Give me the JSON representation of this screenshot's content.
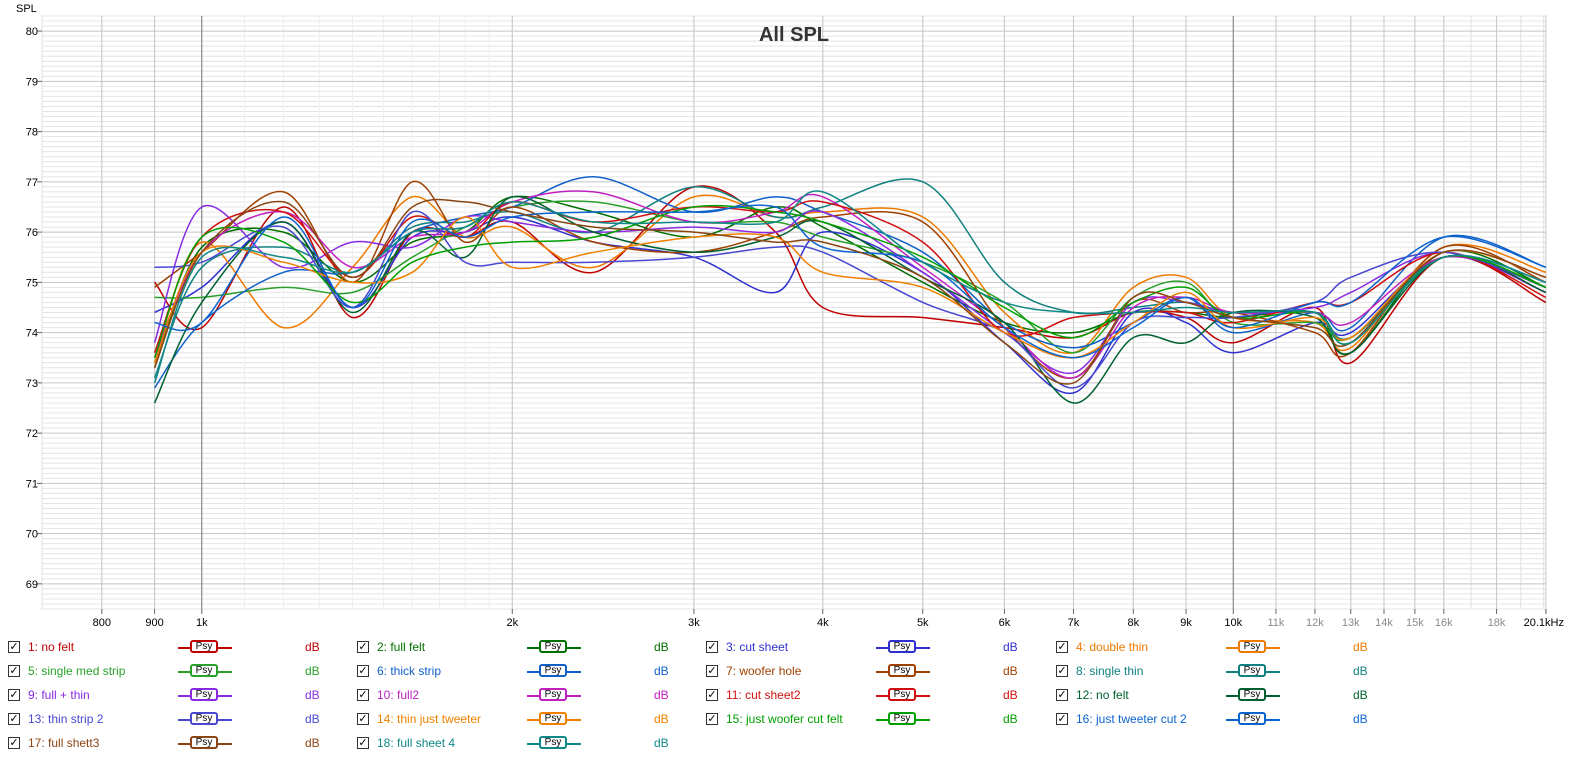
{
  "chart_data": {
    "type": "line",
    "title": "All SPL",
    "ylabel": "SPL",
    "xunit": "kHz",
    "xscale": "log",
    "xlim": [
      700,
      20100
    ],
    "ylim": [
      68.5,
      80.3
    ],
    "grid": true,
    "yticks": [
      69,
      70,
      71,
      72,
      73,
      74,
      75,
      76,
      77,
      78,
      79,
      80
    ],
    "xticks": [
      {
        "v": 800,
        "label": "800",
        "minor": false
      },
      {
        "v": 900,
        "label": "900",
        "minor": false
      },
      {
        "v": 1000,
        "label": "1k",
        "minor": false
      },
      {
        "v": 2000,
        "label": "2k",
        "minor": false
      },
      {
        "v": 3000,
        "label": "3k",
        "minor": false
      },
      {
        "v": 4000,
        "label": "4k",
        "minor": false
      },
      {
        "v": 5000,
        "label": "5k",
        "minor": false
      },
      {
        "v": 6000,
        "label": "6k",
        "minor": false
      },
      {
        "v": 7000,
        "label": "7k",
        "minor": false
      },
      {
        "v": 8000,
        "label": "8k",
        "minor": false
      },
      {
        "v": 9000,
        "label": "9k",
        "minor": false
      },
      {
        "v": 10000,
        "label": "10k",
        "minor": false
      },
      {
        "v": 11000,
        "label": "11k",
        "minor": true
      },
      {
        "v": 12000,
        "label": "12k",
        "minor": true
      },
      {
        "v": 13000,
        "label": "13k",
        "minor": true
      },
      {
        "v": 14000,
        "label": "14k",
        "minor": true
      },
      {
        "v": 15000,
        "label": "15k",
        "minor": true
      },
      {
        "v": 16000,
        "label": "16k",
        "minor": true
      },
      {
        "v": 18000,
        "label": "18k",
        "minor": true
      },
      {
        "v": 20100,
        "label": "20.1kHz",
        "minor": false
      }
    ],
    "series": [
      {
        "name": "1: no felt",
        "color": "#c00000",
        "x": [
          900,
          1000,
          1200,
          1400,
          1600,
          1800,
          2000,
          2400,
          3000,
          3600,
          4000,
          5000,
          6000,
          7000,
          8000,
          9000,
          10000,
          12000,
          13000,
          16000,
          20100
        ],
        "y": [
          75.0,
          74.1,
          76.5,
          74.3,
          76.0,
          75.9,
          76.2,
          75.2,
          76.9,
          76.0,
          74.5,
          74.3,
          74.1,
          73.9,
          74.4,
          74.3,
          73.8,
          74.5,
          73.4,
          75.5,
          74.6
        ]
      },
      {
        "name": "2: full felt",
        "color": "#007000",
        "x": [
          900,
          1000,
          1200,
          1400,
          1600,
          1800,
          2000,
          2400,
          3000,
          3600,
          4000,
          5000,
          6000,
          7000,
          8000,
          9000,
          10000,
          12000,
          13000,
          16000,
          20100
        ],
        "y": [
          73.3,
          75.7,
          76.0,
          75.0,
          75.8,
          76.0,
          76.7,
          76.4,
          75.9,
          76.5,
          76.1,
          75.0,
          74.2,
          74.0,
          74.4,
          74.4,
          74.3,
          74.4,
          73.6,
          75.6,
          74.9
        ]
      },
      {
        "name": "3: cut sheet",
        "color": "#3030d0",
        "x": [
          900,
          1000,
          1200,
          1400,
          1600,
          1800,
          2000,
          2400,
          3000,
          3600,
          4000,
          5000,
          6000,
          7000,
          8000,
          9000,
          10000,
          12000,
          13000,
          16000,
          20100
        ],
        "y": [
          74.4,
          74.9,
          76.2,
          74.5,
          75.9,
          76.0,
          76.3,
          75.8,
          75.5,
          74.8,
          76.0,
          75.2,
          73.8,
          72.8,
          74.4,
          74.2,
          73.6,
          74.2,
          74.0,
          75.5,
          74.8
        ]
      },
      {
        "name": "4: double thin",
        "color": "#ee7a00",
        "x": [
          900,
          1000,
          1200,
          1400,
          1600,
          1800,
          2000,
          2400,
          3000,
          3600,
          4000,
          5000,
          6000,
          7000,
          8000,
          9000,
          10000,
          12000,
          13000,
          16000,
          20100
        ],
        "y": [
          73.4,
          75.8,
          74.1,
          75.3,
          76.7,
          75.9,
          76.1,
          75.3,
          76.7,
          76.3,
          76.4,
          76.3,
          74.4,
          73.6,
          74.9,
          75.1,
          74.3,
          74.2,
          73.7,
          75.7,
          75.2
        ]
      },
      {
        "name": "5: single med strip",
        "color": "#2aa02a",
        "x": [
          900,
          1000,
          1200,
          1400,
          1600,
          1800,
          2000,
          2400,
          3000,
          3600,
          4000,
          5000,
          6000,
          7000,
          8000,
          9000,
          10000,
          12000,
          13000,
          16000,
          20100
        ],
        "y": [
          74.7,
          74.7,
          74.9,
          74.8,
          75.5,
          76.1,
          76.5,
          76.6,
          76.2,
          76.2,
          75.9,
          75.4,
          74.6,
          73.6,
          74.7,
          75.0,
          74.2,
          74.2,
          73.9,
          75.5,
          74.9
        ]
      },
      {
        "name": "6: thick strip",
        "color": "#1060c8",
        "x": [
          900,
          1000,
          1200,
          1400,
          1600,
          1800,
          2000,
          2400,
          3000,
          3600,
          4000,
          5000,
          6000,
          7000,
          8000,
          9000,
          10000,
          12000,
          13000,
          16000,
          20100
        ],
        "y": [
          72.9,
          74.2,
          75.2,
          75.2,
          76.0,
          76.3,
          76.5,
          77.1,
          76.4,
          76.7,
          76.4,
          75.6,
          74.2,
          73.7,
          74.2,
          74.7,
          74.0,
          74.4,
          74.1,
          75.9,
          75.3
        ]
      },
      {
        "name": "7: woofer hole",
        "color": "#a04000",
        "x": [
          900,
          1000,
          1200,
          1400,
          1600,
          1800,
          2000,
          2400,
          3000,
          3600,
          4000,
          5000,
          6000,
          7000,
          8000,
          9000,
          10000,
          12000,
          13000,
          16000,
          20100
        ],
        "y": [
          74.9,
          75.6,
          76.8,
          75.0,
          77.0,
          75.8,
          76.5,
          75.8,
          75.6,
          76.0,
          76.3,
          76.2,
          74.1,
          73.1,
          74.6,
          74.4,
          74.4,
          74.0,
          73.6,
          75.7,
          75.0
        ]
      },
      {
        "name": "8: single thin",
        "color": "#108080",
        "x": [
          900,
          1000,
          1200,
          1400,
          1600,
          1800,
          2000,
          2400,
          3000,
          3600,
          4000,
          5000,
          6000,
          7000,
          8000,
          9000,
          10000,
          12000,
          13000,
          16000,
          20100
        ],
        "y": [
          73.1,
          75.3,
          75.7,
          75.2,
          76.1,
          76.2,
          76.4,
          76.0,
          76.9,
          76.3,
          76.5,
          77.0,
          75.0,
          74.4,
          74.5,
          74.6,
          74.4,
          74.4,
          73.9,
          75.5,
          75.0
        ]
      },
      {
        "name": "9: full + thin",
        "color": "#8a2be2",
        "x": [
          900,
          1000,
          1200,
          1400,
          1600,
          1800,
          2000,
          2400,
          3000,
          3600,
          4000,
          5000,
          6000,
          7000,
          8000,
          9000,
          10000,
          12000,
          13000,
          16000,
          20100
        ],
        "y": [
          73.8,
          76.5,
          75.3,
          75.8,
          75.7,
          76.3,
          76.2,
          76.0,
          76.1,
          76.0,
          76.4,
          75.2,
          74.0,
          73.2,
          74.6,
          74.6,
          74.4,
          74.5,
          74.8,
          75.6,
          74.8
        ]
      },
      {
        "name": "10: full2",
        "color": "#c020c0",
        "x": [
          900,
          1000,
          1200,
          1400,
          1600,
          1800,
          2000,
          2400,
          3000,
          3600,
          4000,
          5000,
          6000,
          7000,
          8000,
          9000,
          10000,
          12000,
          13000,
          16000,
          20100
        ],
        "y": [
          73.5,
          75.6,
          76.4,
          75.3,
          75.9,
          76.0,
          76.6,
          76.8,
          76.2,
          76.4,
          76.7,
          75.3,
          74.1,
          73.1,
          74.5,
          74.7,
          74.4,
          74.4,
          74.2,
          75.5,
          74.9
        ]
      },
      {
        "name": "11: cut sheet2",
        "color": "#d01010",
        "x": [
          900,
          1000,
          1200,
          1400,
          1600,
          1800,
          2000,
          2400,
          3000,
          3600,
          4000,
          5000,
          6000,
          7000,
          8000,
          9000,
          10000,
          12000,
          13000,
          16000,
          20100
        ],
        "y": [
          73.6,
          75.9,
          76.4,
          75.1,
          76.3,
          75.9,
          76.6,
          76.2,
          76.5,
          76.4,
          76.6,
          75.8,
          74.0,
          74.3,
          74.4,
          74.4,
          74.2,
          74.6,
          74.6,
          75.6,
          74.7
        ]
      },
      {
        "name": "12: no felt",
        "color": "#006030",
        "x": [
          900,
          1000,
          1200,
          1400,
          1600,
          1800,
          2000,
          2400,
          3000,
          3600,
          4000,
          5000,
          6000,
          7000,
          8000,
          9000,
          10000,
          12000,
          13000,
          16000,
          20100
        ],
        "y": [
          72.6,
          74.6,
          76.2,
          74.4,
          76.0,
          75.5,
          76.7,
          76.0,
          75.6,
          75.9,
          76.2,
          75.1,
          74.2,
          72.6,
          73.9,
          73.8,
          74.4,
          74.3,
          73.6,
          75.5,
          74.8
        ]
      },
      {
        "name": "13: thin strip 2",
        "color": "#4848d0",
        "x": [
          900,
          1000,
          1200,
          1400,
          1600,
          1800,
          2000,
          2400,
          3000,
          3600,
          4000,
          5000,
          6000,
          7000,
          8000,
          9000,
          10000,
          12000,
          13000,
          16000,
          20100
        ],
        "y": [
          75.3,
          75.4,
          76.1,
          74.5,
          76.4,
          75.4,
          75.4,
          75.4,
          75.5,
          75.7,
          75.6,
          74.6,
          74.0,
          72.9,
          74.2,
          74.3,
          74.3,
          74.6,
          75.1,
          75.6,
          74.9
        ]
      },
      {
        "name": "14: thin just tweeter",
        "color": "#f08000",
        "x": [
          900,
          1000,
          1200,
          1400,
          1600,
          1800,
          2000,
          2400,
          3000,
          3600,
          4000,
          5000,
          6000,
          7000,
          8000,
          9000,
          10000,
          12000,
          13000,
          16000,
          20100
        ],
        "y": [
          73.4,
          75.6,
          75.4,
          75.0,
          75.2,
          76.3,
          75.3,
          75.6,
          75.9,
          75.9,
          75.2,
          74.9,
          74.0,
          73.5,
          74.2,
          74.8,
          74.1,
          74.3,
          73.9,
          75.6,
          75.1
        ]
      },
      {
        "name": "15: just woofer cut felt",
        "color": "#00a000",
        "x": [
          900,
          1000,
          1200,
          1400,
          1600,
          1800,
          2000,
          2400,
          3000,
          3600,
          4000,
          5000,
          6000,
          7000,
          8000,
          9000,
          10000,
          12000,
          13000,
          16000,
          20100
        ],
        "y": [
          73.5,
          75.9,
          75.8,
          74.6,
          75.4,
          75.7,
          75.8,
          75.9,
          76.5,
          76.4,
          76.2,
          75.5,
          74.5,
          73.9,
          74.6,
          74.9,
          74.3,
          74.4,
          73.8,
          75.5,
          74.9
        ]
      },
      {
        "name": "16: just tweeter cut 2",
        "color": "#0a64d0",
        "x": [
          900,
          1000,
          1200,
          1400,
          1600,
          1800,
          2000,
          2400,
          3000,
          3600,
          4000,
          5000,
          6000,
          7000,
          8000,
          9000,
          10000,
          12000,
          13000,
          16000,
          20100
        ],
        "y": [
          74.2,
          74.2,
          76.3,
          74.5,
          76.2,
          75.9,
          76.3,
          76.4,
          76.4,
          76.5,
          75.7,
          75.4,
          74.1,
          73.5,
          74.1,
          74.7,
          74.1,
          74.6,
          74.6,
          75.9,
          75.3
        ]
      },
      {
        "name": "17: full shett3",
        "color": "#8b4513",
        "x": [
          900,
          1000,
          1200,
          1400,
          1600,
          1800,
          2000,
          2400,
          3000,
          3600,
          4000,
          5000,
          6000,
          7000,
          8000,
          9000,
          10000,
          12000,
          13000,
          16000,
          20100
        ],
        "y": [
          73.3,
          75.6,
          76.6,
          75.1,
          76.5,
          76.6,
          76.4,
          76.1,
          76.0,
          75.8,
          75.8,
          75.1,
          73.8,
          73.0,
          74.7,
          74.6,
          74.3,
          74.1,
          73.8,
          75.6,
          75.1
        ]
      },
      {
        "name": "18: full sheet 4",
        "color": "#108888",
        "x": [
          900,
          1000,
          1200,
          1400,
          1600,
          1800,
          2000,
          2400,
          3000,
          3600,
          4000,
          5000,
          6000,
          7000,
          8000,
          9000,
          10000,
          12000,
          13000,
          16000,
          20100
        ],
        "y": [
          73.0,
          75.5,
          75.5,
          75.2,
          76.0,
          76.1,
          76.6,
          76.2,
          76.2,
          76.2,
          76.8,
          75.4,
          74.6,
          74.4,
          74.4,
          74.5,
          74.4,
          74.4,
          73.8,
          75.5,
          75.0
        ]
      }
    ]
  },
  "legend": {
    "psy_label": "Psy",
    "unit_label": "dB",
    "check_glyph": "✓"
  }
}
